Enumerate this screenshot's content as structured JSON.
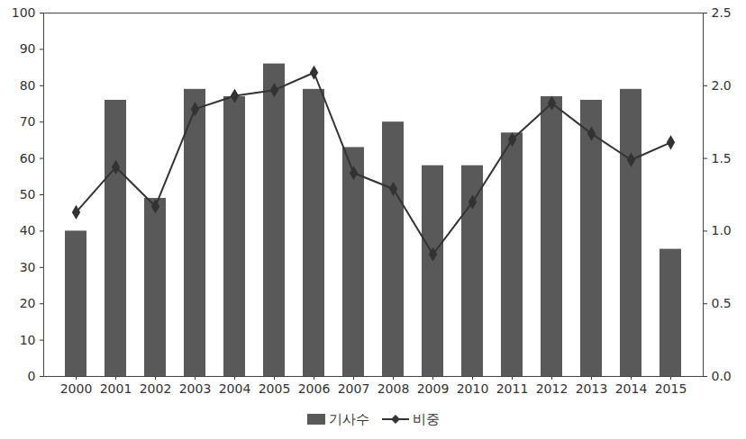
{
  "chart_data": {
    "type": "bar",
    "categories": [
      "2000",
      "2001",
      "2002",
      "2003",
      "2004",
      "2005",
      "2006",
      "2007",
      "2008",
      "2009",
      "2010",
      "2011",
      "2012",
      "2013",
      "2014",
      "2015"
    ],
    "series": [
      {
        "name": "기사수",
        "type": "bar",
        "color": "#595959",
        "values": [
          40,
          76,
          49,
          79,
          77,
          86,
          79,
          63,
          70,
          58,
          58,
          67,
          77,
          76,
          79,
          35
        ]
      },
      {
        "name": "비중",
        "type": "line",
        "axis": "y2",
        "color": "#333333",
        "marker": "diamond",
        "values": [
          1.13,
          1.44,
          1.17,
          1.84,
          1.93,
          1.97,
          2.09,
          1.4,
          1.29,
          0.84,
          1.2,
          1.63,
          1.88,
          1.67,
          1.49,
          1.61
        ]
      }
    ],
    "ylim": [
      0,
      100
    ],
    "yticks": [
      0,
      10,
      20,
      30,
      40,
      50,
      60,
      70,
      80,
      90,
      100
    ],
    "y2lim": [
      0,
      2.5
    ],
    "y2ticks": [
      {
        "value": 0,
        "label": "0.0"
      },
      {
        "value": 0.5,
        "label": "0.5"
      },
      {
        "value": 1,
        "label": "1.0"
      },
      {
        "value": 1.5,
        "label": "1.5"
      },
      {
        "value": 2,
        "label": "2.0"
      },
      {
        "value": 2.5,
        "label": "2.5"
      }
    ],
    "grid": false,
    "legend": "bottom"
  }
}
